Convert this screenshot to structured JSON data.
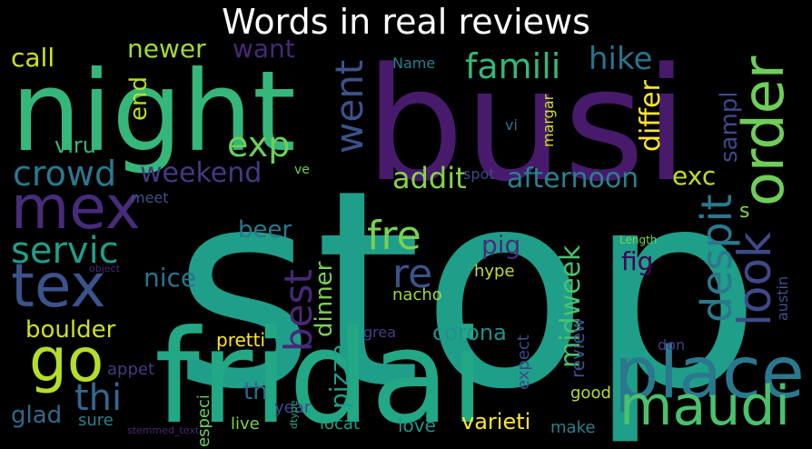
{
  "title": "Words in real reviews",
  "colors": {
    "background": "#000000",
    "title": "#ffffff"
  },
  "words": [
    {
      "text": "stop",
      "color": "#1f9e89"
    },
    {
      "text": "busi",
      "color": "#481a6c"
    },
    {
      "text": "fridai",
      "color": "#22a884"
    },
    {
      "text": "night",
      "color": "#35b779"
    },
    {
      "text": "place",
      "color": "#2a788e"
    },
    {
      "text": "mex",
      "color": "#472c7a"
    },
    {
      "text": "tex",
      "color": "#3b528b"
    },
    {
      "text": "go",
      "color": "#b5de2b"
    },
    {
      "text": "order",
      "color": "#6ece58"
    },
    {
      "text": "maudi",
      "color": "#4ac16d"
    },
    {
      "text": "look",
      "color": "#3e4989"
    },
    {
      "text": "despit",
      "color": "#2a788e"
    },
    {
      "text": "famili",
      "color": "#35b779"
    },
    {
      "text": "went",
      "color": "#3b528b"
    },
    {
      "text": "servic",
      "color": "#1f9e89"
    },
    {
      "text": "crowd",
      "color": "#2a788e"
    },
    {
      "text": "exp",
      "color": "#6ece58"
    },
    {
      "text": "fre",
      "color": "#7ad151"
    },
    {
      "text": "re",
      "color": "#3b528b"
    },
    {
      "text": "best",
      "color": "#482878"
    },
    {
      "text": "thi",
      "color": "#31688e"
    },
    {
      "text": "weekend",
      "color": "#443983"
    },
    {
      "text": "afternoon",
      "color": "#26828e"
    },
    {
      "text": "addit",
      "color": "#84d44b"
    },
    {
      "text": "differ",
      "color": "#fde725"
    },
    {
      "text": "exc",
      "color": "#bddf26"
    },
    {
      "text": "hike",
      "color": "#2c728e"
    },
    {
      "text": "sampl",
      "color": "#3e4989"
    },
    {
      "text": "newer",
      "color": "#a0da39"
    },
    {
      "text": "call",
      "color": "#d0e11c"
    },
    {
      "text": "want",
      "color": "#482878"
    },
    {
      "text": "end",
      "color": "#b5de2b"
    },
    {
      "text": "viru",
      "color": "#35b779"
    },
    {
      "text": "boulder",
      "color": "#d0e11c"
    },
    {
      "text": "nice",
      "color": "#2c728e"
    },
    {
      "text": "beer",
      "color": "#2a788e"
    },
    {
      "text": "dinner",
      "color": "#7ad151"
    },
    {
      "text": "pizza",
      "color": "#1f9e89"
    },
    {
      "text": "midweek",
      "color": "#4ac16d"
    },
    {
      "text": "corona",
      "color": "#21918c"
    },
    {
      "text": "pig",
      "color": "#472c7a"
    },
    {
      "text": "fig",
      "color": "#440154"
    },
    {
      "text": "s",
      "color": "#84d44b"
    },
    {
      "text": "glad",
      "color": "#31688e"
    },
    {
      "text": "th",
      "color": "#31688e"
    },
    {
      "text": "pretti",
      "color": "#fde725"
    },
    {
      "text": "hype",
      "color": "#bddf26"
    },
    {
      "text": "nacho",
      "color": "#a0da39"
    },
    {
      "text": "appet",
      "color": "#443983"
    },
    {
      "text": "good",
      "color": "#b5de2b"
    },
    {
      "text": "sure",
      "color": "#26828e"
    },
    {
      "text": "especi",
      "color": "#6ece58"
    },
    {
      "text": "live",
      "color": "#7ad151"
    },
    {
      "text": "year",
      "color": "#3e4989"
    },
    {
      "text": "locat",
      "color": "#1f9e89"
    },
    {
      "text": "love",
      "color": "#21918c"
    },
    {
      "text": "varieti",
      "color": "#fde725"
    },
    {
      "text": "make",
      "color": "#26828e"
    },
    {
      "text": "review",
      "color": "#3b528b"
    },
    {
      "text": "expect",
      "color": "#3e4989"
    },
    {
      "text": "grea",
      "color": "#433e85"
    },
    {
      "text": "don",
      "color": "#433e85"
    },
    {
      "text": "austin",
      "color": "#3b528b"
    },
    {
      "text": "margar",
      "color": "#d0e11c"
    },
    {
      "text": "vi",
      "color": "#2c728e"
    },
    {
      "text": "spot",
      "color": "#3e4989"
    },
    {
      "text": "ve",
      "color": "#6ece58"
    },
    {
      "text": "meet",
      "color": "#3b528b"
    },
    {
      "text": "Name",
      "color": "#26828e"
    },
    {
      "text": "Length",
      "color": "#7ad151"
    },
    {
      "text": "object",
      "color": "#482878"
    },
    {
      "text": "dtype",
      "color": "#22a884"
    },
    {
      "text": "stemmed_text",
      "color": "#482878"
    }
  ]
}
